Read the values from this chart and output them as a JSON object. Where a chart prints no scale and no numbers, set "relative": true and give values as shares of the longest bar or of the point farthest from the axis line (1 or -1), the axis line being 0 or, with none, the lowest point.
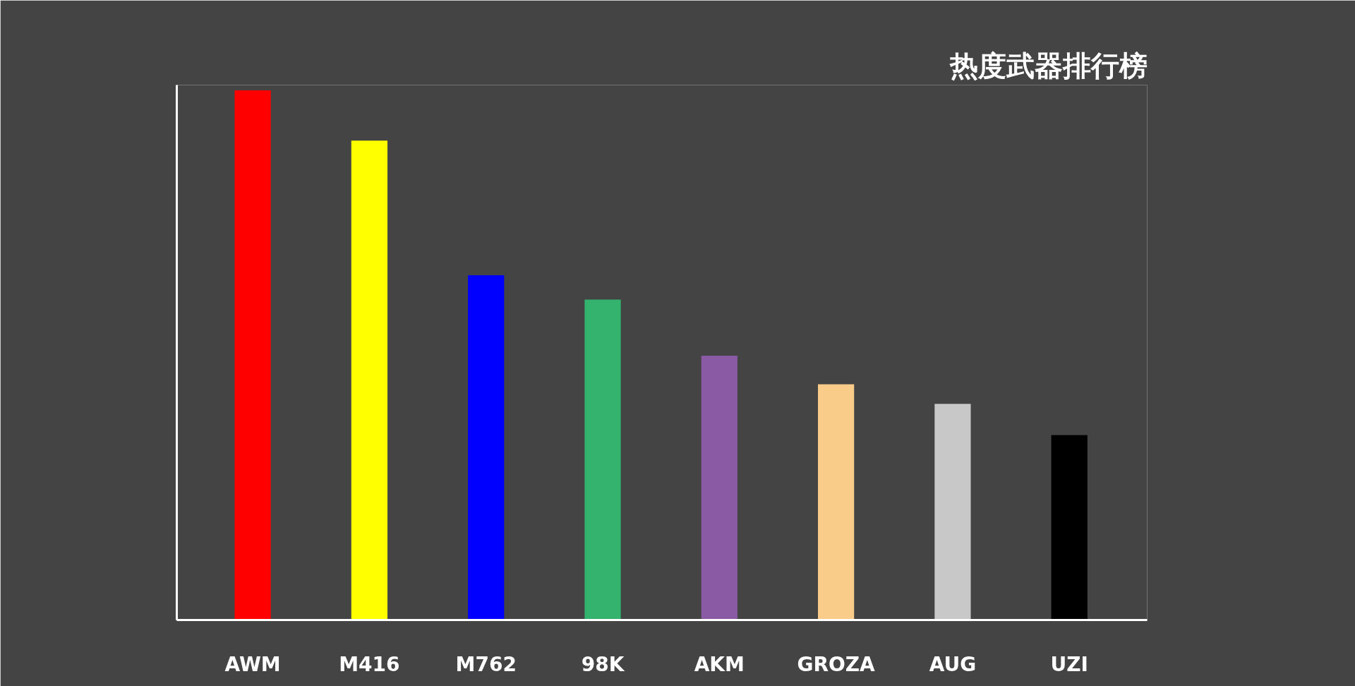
{
  "chart_data": {
    "type": "bar",
    "title": "热度武器排行榜",
    "relative": true,
    "grid": false,
    "categories": [
      "AWM",
      "M416",
      "M762",
      "98K",
      "AKM",
      "GROZA",
      "AUG",
      "UZI"
    ],
    "values": [
      1,
      0.905,
      0.651,
      0.605,
      0.499,
      0.445,
      0.408,
      0.349
    ],
    "colors": [
      "#ff0000",
      "#ffff00",
      "#0000ff",
      "#33b36e",
      "#8a5aa5",
      "#f9cc8a",
      "#c8c8c8",
      "#000000"
    ]
  }
}
